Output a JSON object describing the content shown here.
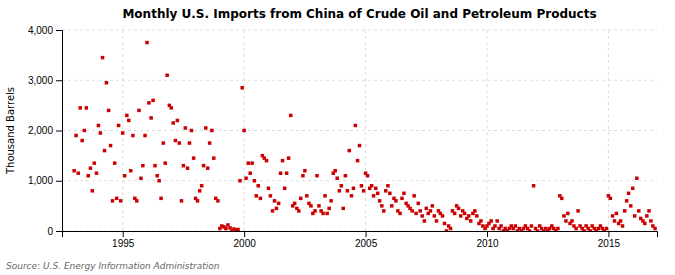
{
  "chart_data": {
    "type": "scatter",
    "title": "Monthly U.S. Imports from China of Crude Oil and Petroleum Products",
    "y_label": "Thousand Barrels",
    "annotation": "Source: U.S. Energy Information Administration",
    "color": "#cc0000",
    "marker": "square",
    "grid": true,
    "xlim": [
      1992.5,
      2017.0
    ],
    "xticks": [
      1995,
      2000,
      2005,
      2010,
      2015
    ],
    "ylim": [
      0,
      4000
    ],
    "yticks": [
      0,
      {
        "value": 1000,
        "label": "1,000"
      },
      {
        "value": 2000,
        "label": "2,000"
      },
      {
        "value": 3000,
        "label": "3,000"
      },
      {
        "value": 4000,
        "label": "4,000"
      }
    ],
    "x": [
      1993.0,
      1993.08,
      1993.17,
      1993.25,
      1993.33,
      1993.42,
      1993.5,
      1993.58,
      1993.67,
      1993.75,
      1993.83,
      1993.92,
      1994.0,
      1994.08,
      1994.17,
      1994.25,
      1994.33,
      1994.42,
      1994.5,
      1994.58,
      1994.67,
      1994.75,
      1994.83,
      1994.92,
      1995.0,
      1995.08,
      1995.17,
      1995.25,
      1995.33,
      1995.42,
      1995.5,
      1995.58,
      1995.67,
      1995.75,
      1995.83,
      1995.92,
      1996.0,
      1996.08,
      1996.17,
      1996.25,
      1996.33,
      1996.42,
      1996.5,
      1996.58,
      1996.67,
      1996.75,
      1996.83,
      1996.92,
      1997.0,
      1997.08,
      1997.17,
      1997.25,
      1997.33,
      1997.42,
      1997.5,
      1997.58,
      1997.67,
      1997.75,
      1997.83,
      1997.92,
      1998.0,
      1998.08,
      1998.17,
      1998.25,
      1998.33,
      1998.42,
      1998.5,
      1998.58,
      1998.67,
      1998.75,
      1998.83,
      1998.92,
      1999.0,
      1999.08,
      1999.17,
      1999.25,
      1999.33,
      1999.42,
      1999.5,
      1999.58,
      1999.67,
      1999.75,
      1999.83,
      1999.92,
      2000.0,
      2000.08,
      2000.17,
      2000.25,
      2000.33,
      2000.42,
      2000.5,
      2000.58,
      2000.67,
      2000.75,
      2000.83,
      2000.92,
      2001.0,
      2001.08,
      2001.17,
      2001.25,
      2001.33,
      2001.42,
      2001.5,
      2001.58,
      2001.67,
      2001.75,
      2001.83,
      2001.92,
      2002.0,
      2002.08,
      2002.17,
      2002.25,
      2002.33,
      2002.42,
      2002.5,
      2002.58,
      2002.67,
      2002.75,
      2002.83,
      2002.92,
      2003.0,
      2003.08,
      2003.17,
      2003.25,
      2003.33,
      2003.42,
      2003.5,
      2003.58,
      2003.67,
      2003.75,
      2003.83,
      2003.92,
      2004.0,
      2004.08,
      2004.17,
      2004.25,
      2004.33,
      2004.42,
      2004.5,
      2004.58,
      2004.67,
      2004.75,
      2004.83,
      2004.92,
      2005.0,
      2005.08,
      2005.17,
      2005.25,
      2005.33,
      2005.42,
      2005.5,
      2005.58,
      2005.67,
      2005.75,
      2005.83,
      2005.92,
      2006.0,
      2006.08,
      2006.17,
      2006.25,
      2006.33,
      2006.42,
      2006.5,
      2006.58,
      2006.67,
      2006.75,
      2006.83,
      2006.92,
      2007.0,
      2007.08,
      2007.17,
      2007.25,
      2007.33,
      2007.42,
      2007.5,
      2007.58,
      2007.67,
      2007.75,
      2007.83,
      2007.92,
      2008.0,
      2008.08,
      2008.17,
      2008.25,
      2008.33,
      2008.42,
      2008.5,
      2008.58,
      2008.67,
      2008.75,
      2008.83,
      2008.92,
      2009.0,
      2009.08,
      2009.17,
      2009.25,
      2009.33,
      2009.42,
      2009.5,
      2009.58,
      2009.67,
      2009.75,
      2009.83,
      2009.92,
      2010.0,
      2010.08,
      2010.17,
      2010.25,
      2010.33,
      2010.42,
      2010.5,
      2010.58,
      2010.67,
      2010.75,
      2010.83,
      2010.92,
      2011.0,
      2011.08,
      2011.17,
      2011.25,
      2011.33,
      2011.42,
      2011.5,
      2011.58,
      2011.67,
      2011.75,
      2011.83,
      2011.92,
      2012.0,
      2012.08,
      2012.17,
      2012.25,
      2012.33,
      2012.42,
      2012.5,
      2012.58,
      2012.67,
      2012.75,
      2012.83,
      2012.92,
      2013.0,
      2013.08,
      2013.17,
      2013.25,
      2013.33,
      2013.42,
      2013.5,
      2013.58,
      2013.67,
      2013.75,
      2013.83,
      2013.92,
      2014.0,
      2014.08,
      2014.17,
      2014.25,
      2014.33,
      2014.42,
      2014.5,
      2014.58,
      2014.67,
      2014.75,
      2014.83,
      2014.92,
      2015.0,
      2015.08,
      2015.17,
      2015.25,
      2015.33,
      2015.42,
      2015.5,
      2015.58,
      2015.67,
      2015.75,
      2015.83,
      2015.92,
      2016.0,
      2016.08,
      2016.17,
      2016.25,
      2016.33,
      2016.42,
      2016.5,
      2016.58,
      2016.67,
      2016.75,
      2016.83,
      2016.92
    ],
    "values": [
      1200,
      1900,
      1150,
      2450,
      1800,
      2000,
      2450,
      1100,
      1250,
      800,
      1350,
      1150,
      2100,
      1950,
      3450,
      1600,
      2950,
      2400,
      1700,
      600,
      1350,
      650,
      2100,
      600,
      1950,
      1100,
      2300,
      2200,
      1200,
      1900,
      650,
      600,
      2400,
      1050,
      1300,
      1900,
      3750,
      2550,
      2250,
      2600,
      1300,
      1100,
      1000,
      650,
      1750,
      1350,
      3100,
      2500,
      2450,
      2150,
      1800,
      2200,
      1750,
      600,
      1300,
      2050,
      1250,
      1750,
      2000,
      1450,
      650,
      600,
      800,
      900,
      1300,
      2050,
      1250,
      1750,
      2000,
      1450,
      650,
      600,
      50,
      100,
      80,
      50,
      120,
      60,
      0,
      40,
      20,
      30,
      1000,
      2850,
      2000,
      1050,
      1350,
      1150,
      1350,
      1000,
      700,
      900,
      650,
      1500,
      1450,
      1400,
      850,
      700,
      400,
      600,
      450,
      550,
      1150,
      1400,
      850,
      1150,
      1450,
      2300,
      500,
      550,
      450,
      400,
      650,
      1100,
      1200,
      700,
      550,
      500,
      350,
      400,
      1100,
      500,
      400,
      350,
      700,
      350,
      450,
      600,
      1150,
      1200,
      1050,
      800,
      900,
      450,
      1100,
      800,
      1600,
      700,
      850,
      2100,
      1400,
      1700,
      900,
      800,
      1150,
      1100,
      850,
      900,
      700,
      850,
      750,
      600,
      500,
      400,
      800,
      900,
      750,
      500,
      650,
      600,
      400,
      350,
      650,
      750,
      550,
      500,
      450,
      400,
      700,
      350,
      550,
      400,
      300,
      200,
      450,
      350,
      400,
      500,
      300,
      200,
      400,
      350,
      300,
      150,
      0,
      100,
      50,
      400,
      350,
      500,
      450,
      300,
      400,
      350,
      250,
      300,
      200,
      350,
      400,
      300,
      150,
      200,
      100,
      50,
      100,
      150,
      200,
      50,
      100,
      200,
      50,
      100,
      0,
      50,
      0,
      50,
      100,
      50,
      100,
      0,
      50,
      0,
      50,
      100,
      50,
      0,
      100,
      900,
      50,
      0,
      100,
      50,
      0,
      50,
      0,
      50,
      100,
      50,
      0,
      50,
      700,
      650,
      300,
      200,
      350,
      150,
      200,
      100,
      50,
      400,
      100,
      50,
      0,
      100,
      50,
      0,
      100,
      50,
      0,
      50,
      100,
      50,
      0,
      50,
      700,
      650,
      300,
      200,
      350,
      150,
      200,
      100,
      400,
      600,
      750,
      500,
      850,
      300,
      1050,
      400,
      250,
      200,
      150,
      300,
      400,
      200,
      100,
      50
    ]
  }
}
